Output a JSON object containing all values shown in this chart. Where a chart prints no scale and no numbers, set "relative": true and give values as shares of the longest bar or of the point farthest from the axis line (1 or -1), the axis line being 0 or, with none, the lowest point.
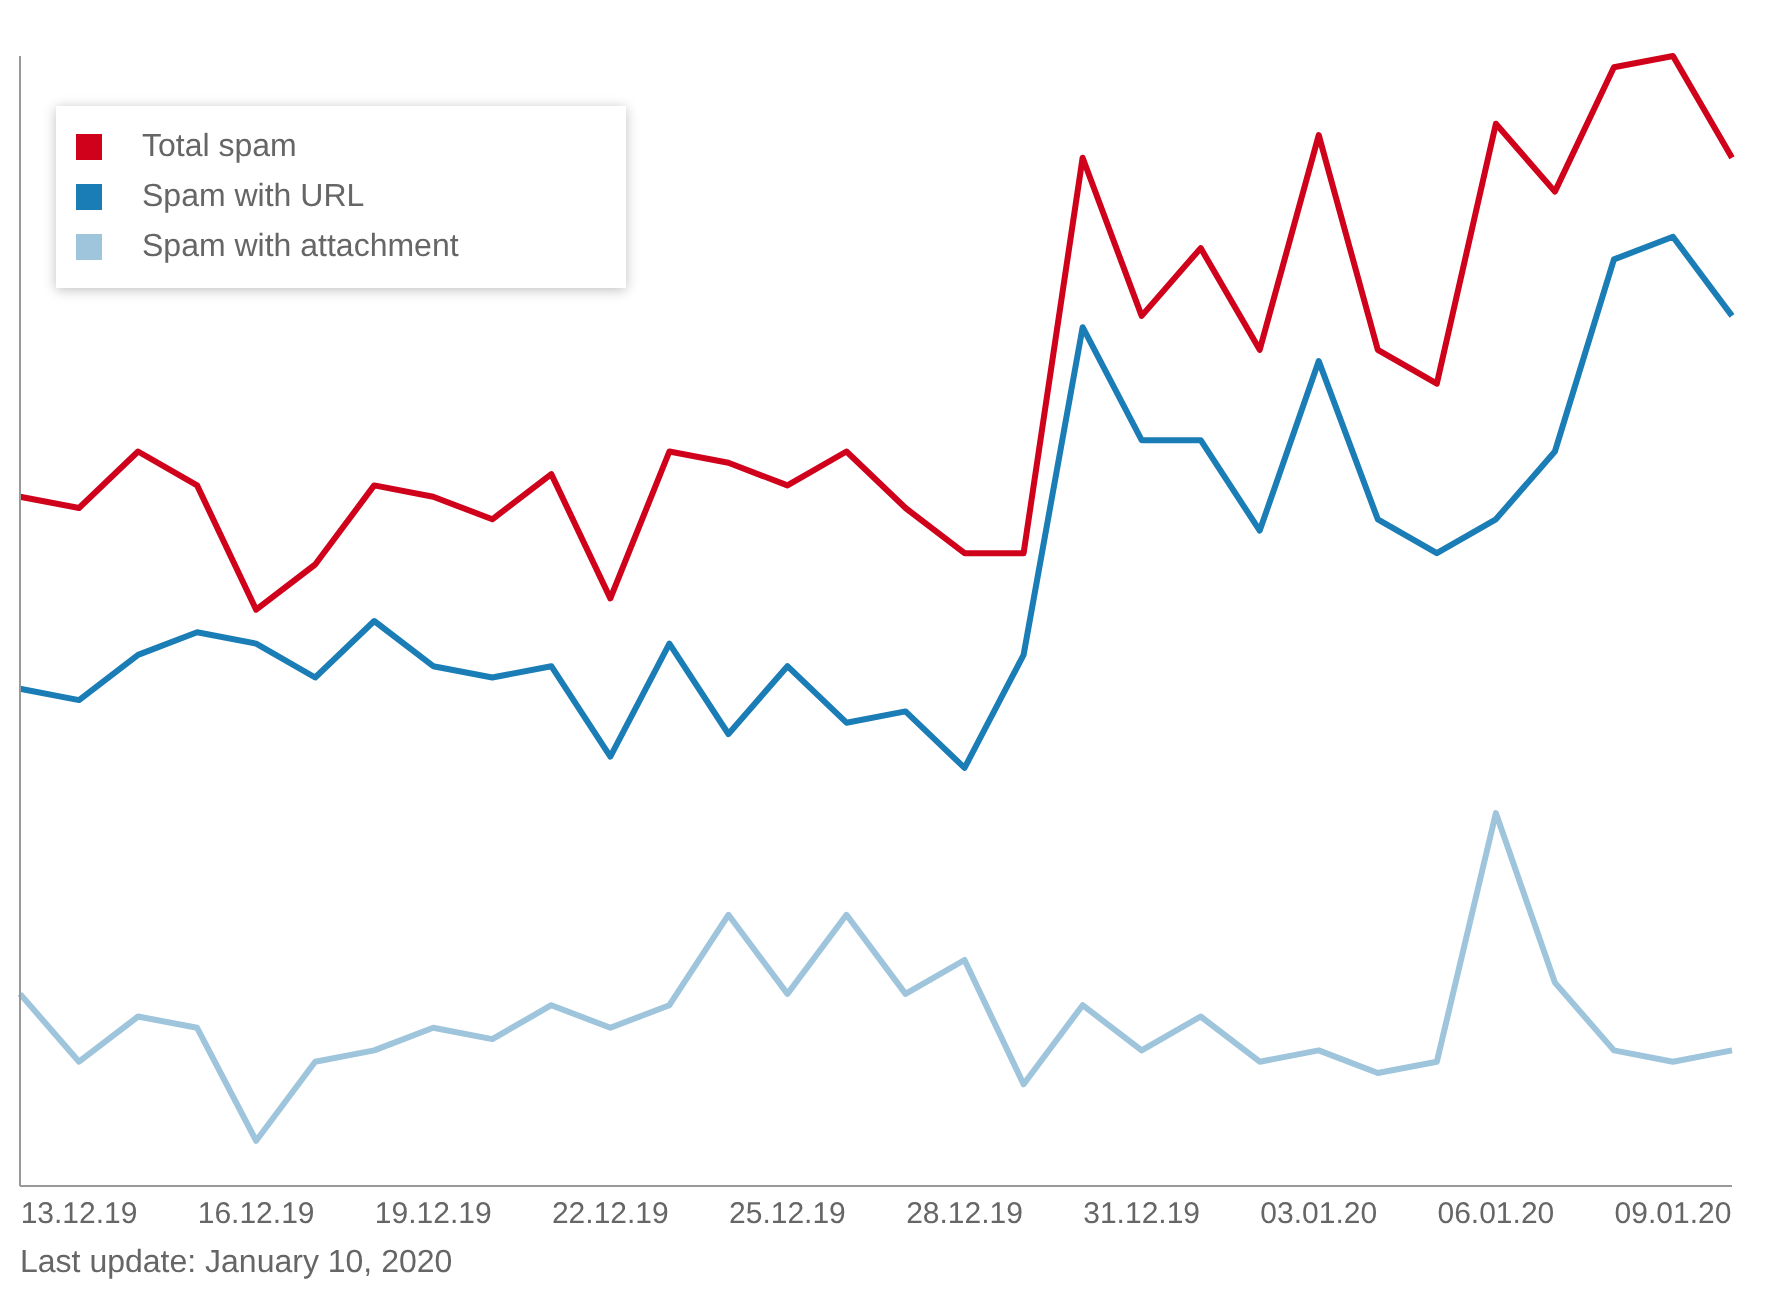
{
  "chart_data": {
    "type": "line",
    "relative": true,
    "categories": [
      null,
      "13.12.19",
      null,
      null,
      "16.12.19",
      null,
      null,
      "19.12.19",
      null,
      null,
      "22.12.19",
      null,
      null,
      "25.12.19",
      null,
      null,
      "28.12.19",
      null,
      null,
      "31.12.19",
      null,
      null,
      "03.01.20",
      null,
      null,
      "06.01.20",
      null,
      null,
      "09.01.20",
      null
    ],
    "series": [
      {
        "name": "Total spam",
        "color": "#d0021b",
        "values": [
          0.61,
          0.6,
          0.65,
          0.62,
          0.51,
          0.55,
          0.62,
          0.61,
          0.59,
          0.63,
          0.52,
          0.65,
          0.64,
          0.62,
          0.65,
          0.6,
          0.56,
          0.56,
          0.91,
          0.77,
          0.83,
          0.74,
          0.93,
          0.74,
          0.71,
          0.94,
          0.88,
          0.99,
          1,
          0.91
        ]
      },
      {
        "name": "Spam with URL",
        "color": "#1a7db6",
        "values": [
          0.44,
          0.43,
          0.47,
          0.49,
          0.48,
          0.45,
          0.5,
          0.46,
          0.45,
          0.46,
          0.38,
          0.48,
          0.4,
          0.46,
          0.41,
          0.42,
          0.37,
          0.47,
          0.76,
          0.66,
          0.66,
          0.58,
          0.73,
          0.59,
          0.56,
          0.59,
          0.65,
          0.82,
          0.84,
          0.77
        ]
      },
      {
        "name": "Spam with attachment",
        "color": "#9ec5dc",
        "values": [
          0.17,
          0.11,
          0.15,
          0.14,
          0.04,
          0.11,
          0.12,
          0.14,
          0.13,
          0.16,
          0.14,
          0.16,
          0.24,
          0.17,
          0.24,
          0.17,
          0.2,
          0.09,
          0.16,
          0.12,
          0.15,
          0.11,
          0.12,
          0.1,
          0.11,
          0.33,
          0.18,
          0.12,
          0.11,
          0.12
        ]
      }
    ],
    "legend": "top left",
    "marker": "none",
    "grid": false,
    "annotations": [
      "Last update: January 10, 2020"
    ]
  }
}
